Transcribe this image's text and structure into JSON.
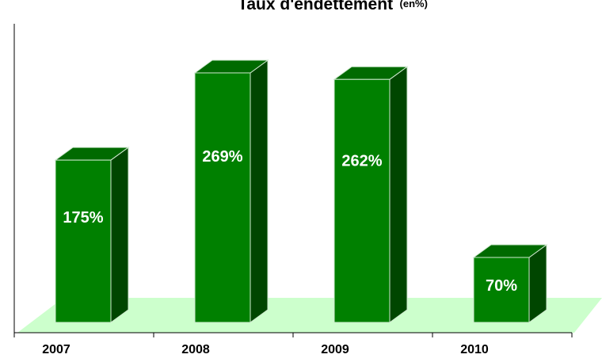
{
  "chart_data": {
    "type": "bar3d",
    "title": "Taux d'endettement",
    "subtitle": "(en%)",
    "categories": [
      "2007",
      "2008",
      "2009",
      "2010"
    ],
    "values": [
      175,
      269,
      262,
      70
    ],
    "value_labels": [
      "175%",
      "269%",
      "262%",
      "70%"
    ],
    "color": "#008000",
    "floor_color": "#ccffcc"
  }
}
